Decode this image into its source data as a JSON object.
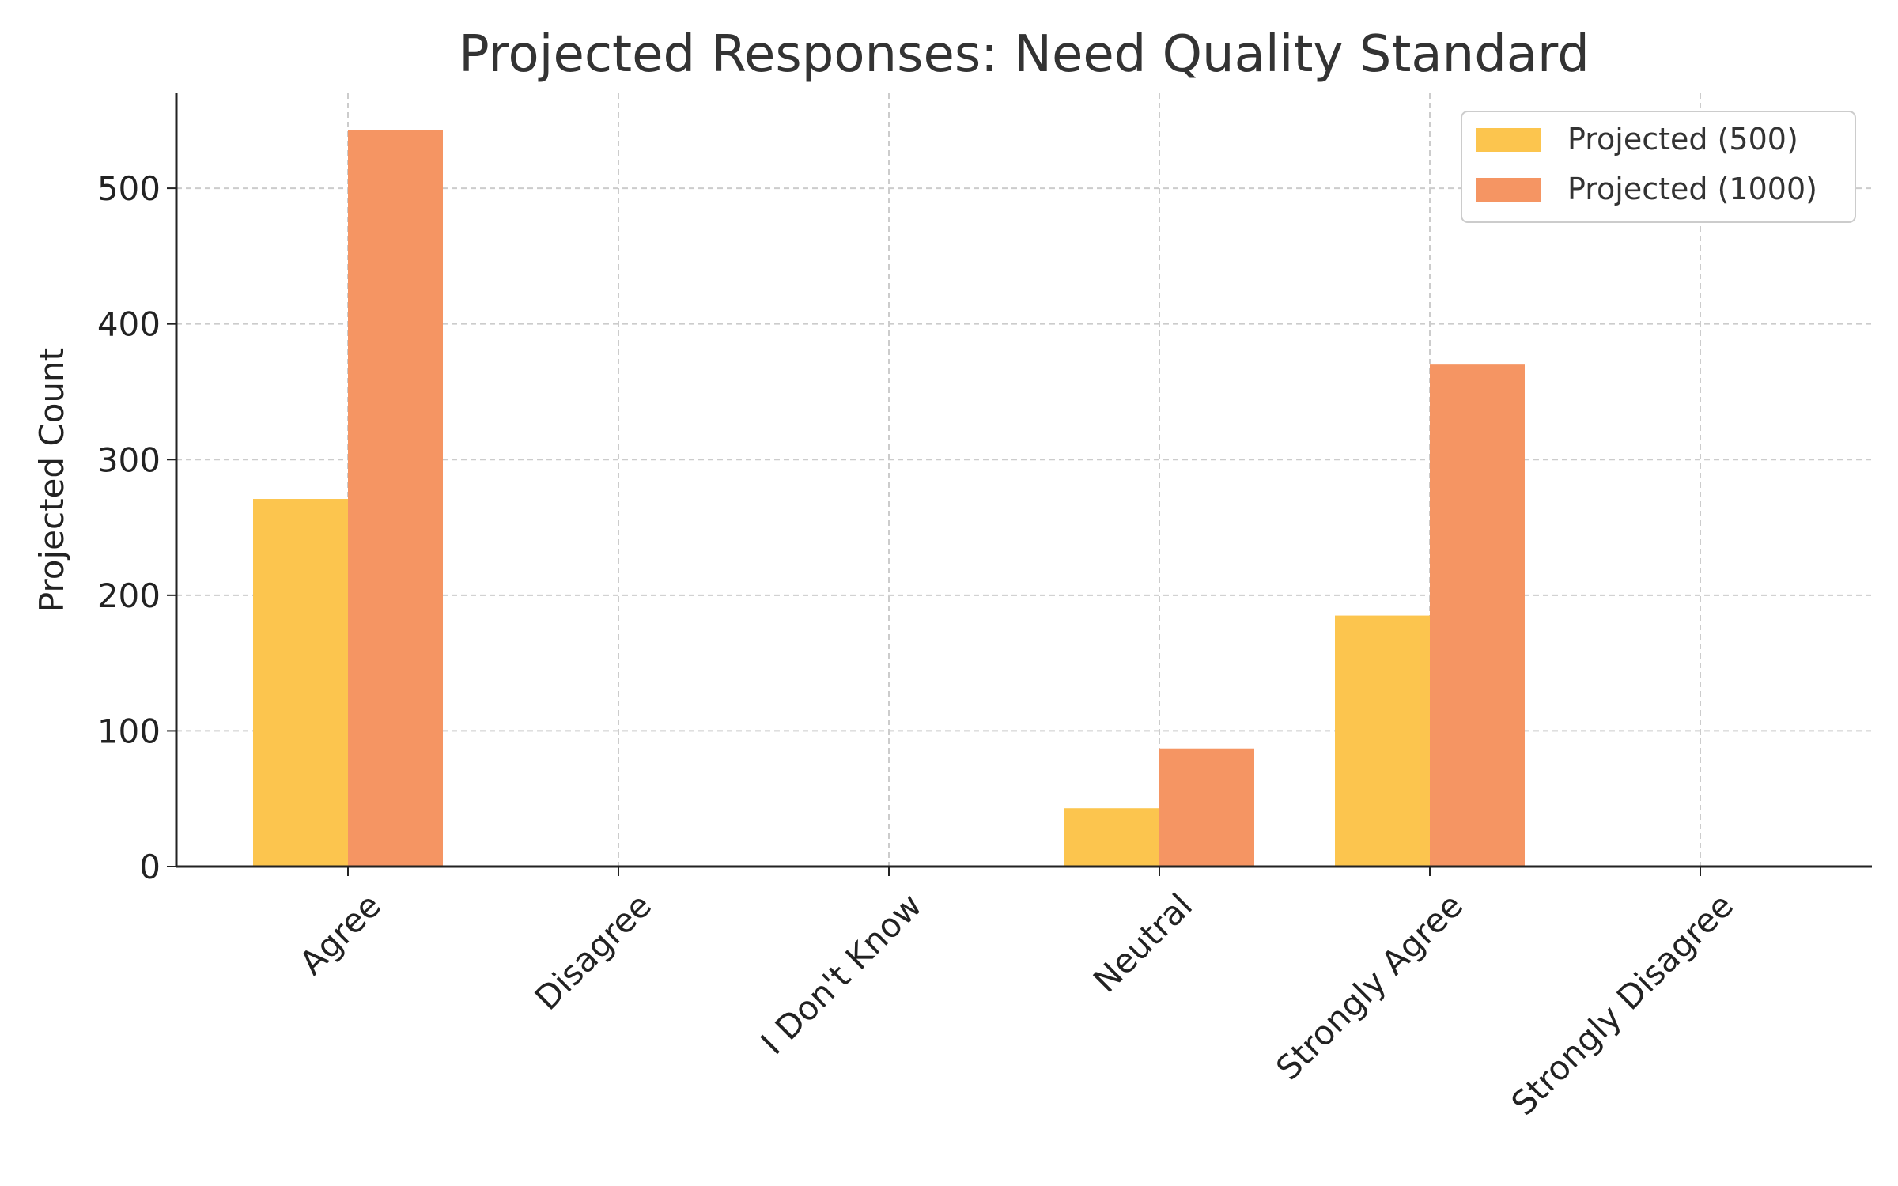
{
  "chart_data": {
    "type": "bar",
    "title": "Projected Responses: Need Quality Standard",
    "xlabel": "",
    "ylabel": "Projected Count",
    "categories": [
      "Agree",
      "Disagree",
      "I Don't Know",
      "Neutral",
      "Strongly Agree",
      "Strongly Disagree"
    ],
    "series": [
      {
        "name": "Projected (500)",
        "color": "#FCC54E",
        "values": [
          271,
          0,
          0,
          43,
          185,
          0
        ]
      },
      {
        "name": "Projected (1000)",
        "color": "#F59563",
        "values": [
          543,
          0,
          0,
          87,
          370,
          0
        ]
      }
    ],
    "ylim": [
      0,
      570
    ],
    "yticks": [
      0,
      100,
      200,
      300,
      400,
      500
    ],
    "grid": true,
    "legend_position": "top-right"
  }
}
